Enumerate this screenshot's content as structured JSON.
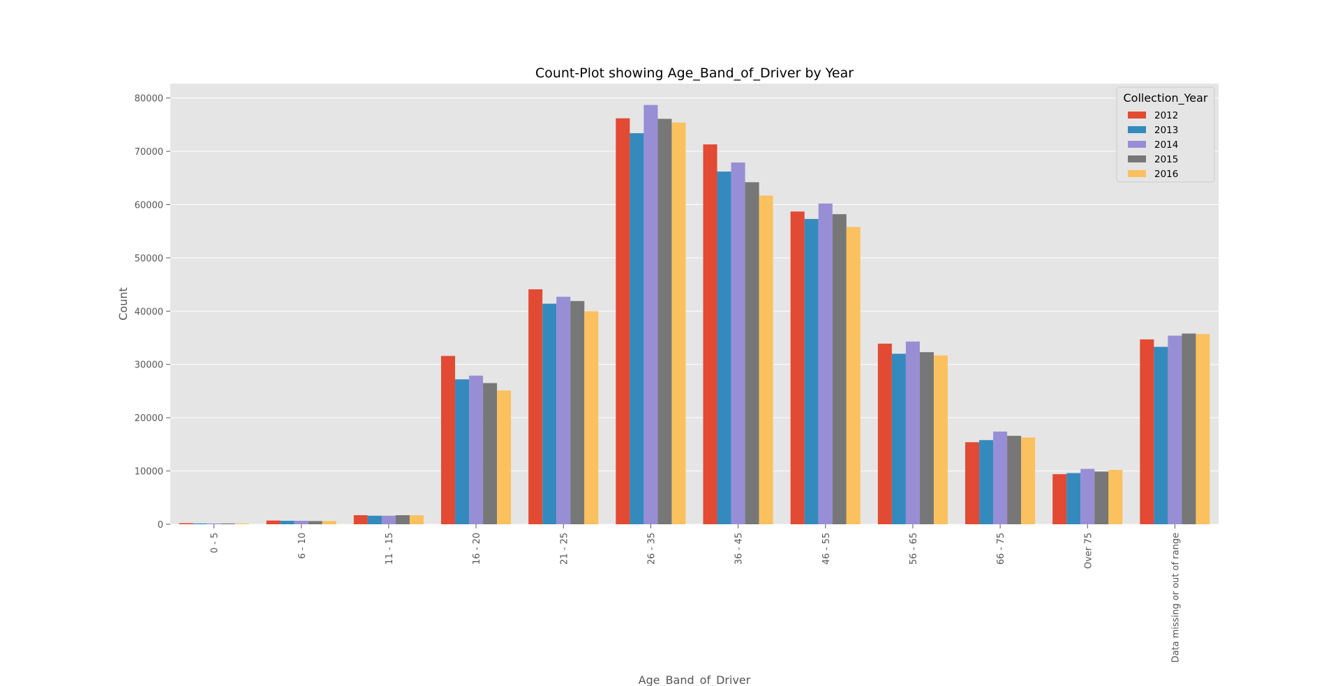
{
  "chart_data": {
    "type": "bar",
    "title": "Count-Plot showing Age_Band_of_Driver by Year",
    "xlabel": "Age_Band_of_Driver",
    "ylabel": "Count",
    "ylim": [
      0,
      82700
    ],
    "yticks": [
      0,
      10000,
      20000,
      30000,
      40000,
      50000,
      60000,
      70000,
      80000
    ],
    "grid": true,
    "legend": {
      "title": "Collection_Year",
      "placement": "top-right"
    },
    "categories": [
      "0 - 5",
      "6 - 10",
      "11 - 15",
      "16 - 20",
      "21 - 25",
      "26 - 35",
      "36 - 45",
      "46 - 55",
      "56 - 65",
      "66 - 75",
      "Over 75",
      "Data missing or out of range"
    ],
    "series": [
      {
        "name": "2012",
        "color": "#E24A33",
        "values": [
          200,
          700,
          1700,
          31600,
          44100,
          76200,
          71300,
          58700,
          33900,
          15400,
          9400,
          34700
        ]
      },
      {
        "name": "2013",
        "color": "#348ABD",
        "values": [
          150,
          650,
          1600,
          27200,
          41400,
          73400,
          66200,
          57300,
          32000,
          15800,
          9600,
          33300
        ]
      },
      {
        "name": "2014",
        "color": "#988ED5",
        "values": [
          150,
          650,
          1600,
          27900,
          42700,
          78700,
          67900,
          60200,
          34300,
          17400,
          10400,
          35400
        ]
      },
      {
        "name": "2015",
        "color": "#777777",
        "values": [
          150,
          600,
          1700,
          26500,
          41900,
          76100,
          64200,
          58200,
          32300,
          16600,
          9900,
          35800
        ]
      },
      {
        "name": "2016",
        "color": "#FBC15E",
        "values": [
          150,
          600,
          1700,
          25100,
          40000,
          75400,
          61700,
          55800,
          31700,
          16300,
          10200,
          35700
        ]
      }
    ]
  }
}
